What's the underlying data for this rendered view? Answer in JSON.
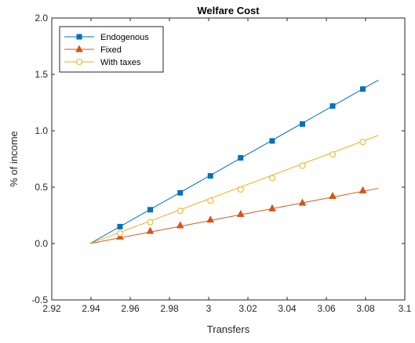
{
  "chart_data": {
    "type": "line",
    "title": "Welfare Cost",
    "xlabel": "Transfers",
    "ylabel": "% of income",
    "xlim": [
      2.92,
      3.1
    ],
    "ylim": [
      -0.5,
      2.0
    ],
    "xticks": [
      2.92,
      2.94,
      2.96,
      2.98,
      3.0,
      3.02,
      3.04,
      3.06,
      3.08,
      3.1
    ],
    "xtick_labels": [
      "2.92",
      "2.94",
      "2.96",
      "2.98",
      "3",
      "3.02",
      "3.04",
      "3.06",
      "3.08",
      "3.1"
    ],
    "yticks": [
      -0.5,
      0.0,
      0.5,
      1.0,
      1.5,
      2.0
    ],
    "ytick_labels": [
      "-0.5",
      "0.0",
      "0.5",
      "1.0",
      "1.5",
      "2.0"
    ],
    "grid": false,
    "box": true,
    "legend_position": "top-left",
    "series": [
      {
        "name": "Endogenous",
        "color": "#0072BD",
        "marker": "square",
        "marker_fill": "#0072BD",
        "line_x": [
          2.9395,
          3.0866
        ],
        "line_y": [
          0.0,
          1.45
        ],
        "marker_x": [
          2.9548,
          2.9702,
          2.9855,
          3.0009,
          3.0163,
          3.0324,
          3.0478,
          3.0632,
          3.0786
        ],
        "marker_y": [
          0.15,
          0.3,
          0.45,
          0.6,
          0.76,
          0.91,
          1.06,
          1.22,
          1.37
        ]
      },
      {
        "name": "Fixed",
        "color": "#D95319",
        "marker": "triangle",
        "marker_fill": "#D95319",
        "line_x": [
          2.9395,
          3.0866
        ],
        "line_y": [
          0.0,
          0.49
        ],
        "marker_x": [
          2.9548,
          2.9702,
          2.9855,
          3.0009,
          3.0163,
          3.0324,
          3.0478,
          3.0632,
          3.0786
        ],
        "marker_y": [
          0.06,
          0.11,
          0.16,
          0.21,
          0.26,
          0.31,
          0.36,
          0.42,
          0.47
        ]
      },
      {
        "name": "With taxes",
        "color": "#EDB120",
        "marker": "circle",
        "marker_fill": "#ffffff",
        "line_x": [
          2.9395,
          3.0866
        ],
        "line_y": [
          0.0,
          0.96
        ],
        "marker_x": [
          2.9548,
          2.9702,
          2.9855,
          3.0009,
          3.0163,
          3.0324,
          3.0478,
          3.0632,
          3.0786
        ],
        "marker_y": [
          0.09,
          0.19,
          0.29,
          0.38,
          0.48,
          0.58,
          0.69,
          0.79,
          0.9
        ]
      }
    ]
  }
}
